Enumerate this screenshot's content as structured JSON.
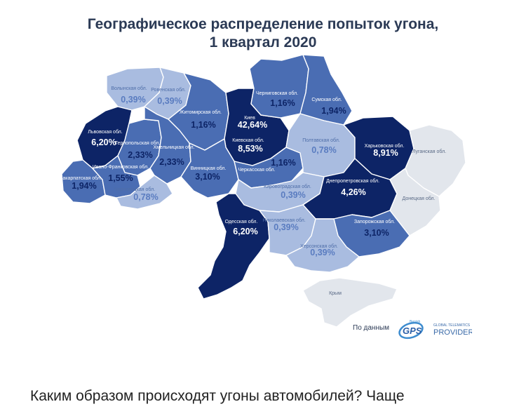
{
  "title": {
    "line1": "Географическое распределение попыток угона,",
    "line2": "1 квартал 2020"
  },
  "colors": {
    "level_none": "#e2e6ec",
    "level_low": "#a9bce0",
    "level_mid": "#4a6db3",
    "level_high": "#0d2466",
    "border": "#ffffff"
  },
  "regions": [
    {
      "id": "volyn",
      "name": "Волынская обл.",
      "value": "0,39%",
      "level": "low"
    },
    {
      "id": "rivne",
      "name": "Ровенская обл.",
      "value": "0,39%",
      "level": "low"
    },
    {
      "id": "zhytomyr",
      "name": "Житомирская обл.",
      "value": "1,16%",
      "level": "mid"
    },
    {
      "id": "kyiv_city",
      "name": "Киев",
      "value": "42,64%",
      "level": "high"
    },
    {
      "id": "kyiv_obl",
      "name": "Киевская обл.",
      "value": "8,53%",
      "level": "high"
    },
    {
      "id": "chernihiv",
      "name": "Черниговская обл.",
      "value": "1,16%",
      "level": "mid"
    },
    {
      "id": "sumy",
      "name": "Сумская обл.",
      "value": "1,94%",
      "level": "mid"
    },
    {
      "id": "lviv",
      "name": "Львовская обл.",
      "value": "6,20%",
      "level": "high"
    },
    {
      "id": "ternopil",
      "name": "Тернопольская обл.",
      "value": "2,33%",
      "level": "mid"
    },
    {
      "id": "khmelnytskyi",
      "name": "Хмельницкая обл.",
      "value": "2,33%",
      "level": "mid"
    },
    {
      "id": "vinnytsia",
      "name": "Винницкая обл.",
      "value": "3,10%",
      "level": "mid"
    },
    {
      "id": "cherkasy",
      "name": "Черкасская обл.",
      "value": "1,16%",
      "level": "mid"
    },
    {
      "id": "poltava",
      "name": "Полтавская обл.",
      "value": "0,78%",
      "level": "low"
    },
    {
      "id": "kharkiv",
      "name": "Харьковская обл.",
      "value": "8,91%",
      "level": "high"
    },
    {
      "id": "luhansk",
      "name": "Луганская обл.",
      "value": "",
      "level": "none"
    },
    {
      "id": "zakarpattia",
      "name": "Закарпатская обл.",
      "value": "1,94%",
      "level": "mid"
    },
    {
      "id": "ivano",
      "name": "Ивано-Франковская обл.",
      "value": "1,55%",
      "level": "mid"
    },
    {
      "id": "chernivtsi",
      "name": "Черновицкая обл.",
      "value": "0,78%",
      "level": "low"
    },
    {
      "id": "kirovohrad",
      "name": "Кировоградская обл.",
      "value": "0,39%",
      "level": "low"
    },
    {
      "id": "dnipro",
      "name": "Днепропетровская обл.",
      "value": "4,26%",
      "level": "high"
    },
    {
      "id": "donetsk",
      "name": "Донецкая обл.",
      "value": "",
      "level": "none"
    },
    {
      "id": "odesa",
      "name": "Одесская обл.",
      "value": "6,20%",
      "level": "high"
    },
    {
      "id": "mykolaiv",
      "name": "Николаевская обл.",
      "value": "0,39%",
      "level": "low"
    },
    {
      "id": "zaporizhzhia",
      "name": "Запорожская обл.",
      "value": "3,10%",
      "level": "mid"
    },
    {
      "id": "kherson",
      "name": "Херсонская обл.",
      "value": "0,39%",
      "level": "low"
    },
    {
      "id": "crimea",
      "name": "Крым",
      "value": "",
      "level": "none"
    }
  ],
  "source": {
    "label": "По данным",
    "logo_text": "GPS",
    "logo_small": "Benish",
    "provider_line1": "GLOBAL TELEMATICS",
    "provider_line2": "PROVIDER"
  },
  "caption": "Каким образом происходят угоны автомобилей? Чаще"
}
